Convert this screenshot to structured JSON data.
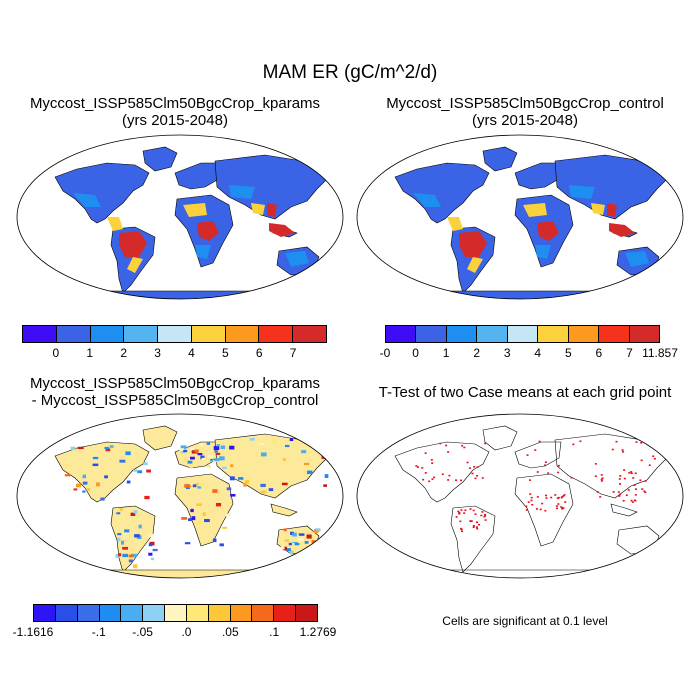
{
  "figure": {
    "title": "MAM ER (gC/m^2/d)"
  },
  "panels": {
    "top_left": {
      "title_line1": "Myccost_ISSP585Clm50BgcCrop_kparams",
      "title_line2": "(yrs 2015-2048)"
    },
    "top_right": {
      "title_line1": "Myccost_ISSP585Clm50BgcCrop_control",
      "title_line2": "(yrs 2015-2048)"
    },
    "bottom_left": {
      "title_line1": "Myccost_ISSP585Clm50BgcCrop_kparams",
      "title_line2": "- Myccost_ISSP585Clm50BgcCrop_control"
    },
    "bottom_right": {
      "title_line1": "T-Test of two Case means at each grid point",
      "note": "Cells are significant at 0.1 level"
    }
  },
  "colorbars": {
    "kparams": {
      "colors": [
        "#3f0df5",
        "#3b63e6",
        "#1e8ff0",
        "#55b4ef",
        "#c4e6f5",
        "#fcd23c",
        "#fb9a1e",
        "#f5331c",
        "#d42a2a"
      ],
      "labels": [
        "0",
        "1",
        "2",
        "3",
        "4",
        "5",
        "6",
        "7"
      ]
    },
    "control": {
      "colors": [
        "#3f0df5",
        "#3b63e6",
        "#1e8ff0",
        "#55b4ef",
        "#c4e6f5",
        "#fcd23c",
        "#fb9a1e",
        "#f5331c",
        "#d42a2a"
      ],
      "labels": [
        "-0",
        "0",
        "1",
        "2",
        "3",
        "4",
        "5",
        "6",
        "7",
        "11.857"
      ]
    },
    "difference": {
      "colors": [
        "#2d15f5",
        "#2a4ee8",
        "#3a6ee8",
        "#1f8cf0",
        "#48aef0",
        "#8fd0f5",
        "#fff5c0",
        "#fde878",
        "#fbc83a",
        "#fb9a1e",
        "#f56a1a",
        "#e8201a",
        "#c81818"
      ],
      "labels": [
        "-1.1616",
        "-.1",
        "-.05",
        ".0",
        ".05",
        ".1",
        "1.2769"
      ]
    }
  },
  "map_colors": {
    "ocean": "#ffffff",
    "cold": "#3b63e6",
    "cool": "#1e8ff0",
    "warm": "#fcd23c",
    "hot": "#d42a2a",
    "diff_background": "#fde99a",
    "significance": "#e8101a"
  }
}
